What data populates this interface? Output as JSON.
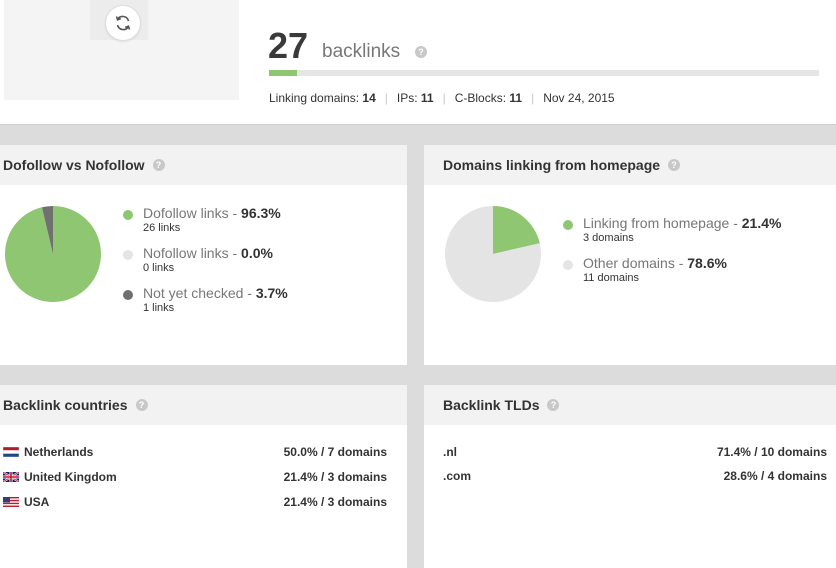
{
  "header": {
    "count": "27",
    "count_label": "backlinks",
    "progress_percent": 5,
    "stats": [
      {
        "label": "Linking domains:",
        "value": "14"
      },
      {
        "label": "IPs:",
        "value": "11"
      },
      {
        "label": "C-Blocks:",
        "value": "11"
      },
      {
        "label": "Nov 24, 2015",
        "value": ""
      }
    ]
  },
  "dofollow": {
    "title": "Dofollow vs Nofollow",
    "items": [
      {
        "label": "Dofollow links - ",
        "pct": "96.3%",
        "sub": "26 links",
        "color": "#8fc672"
      },
      {
        "label": "Nofollow links - ",
        "pct": "0.0%",
        "sub": "0 links",
        "color": "#e4e4e4"
      },
      {
        "label": "Not yet checked - ",
        "pct": "3.7%",
        "sub": "1 links",
        "color": "#707070"
      }
    ]
  },
  "homepage": {
    "title": "Domains linking from homepage",
    "items": [
      {
        "label": "Linking from homepage - ",
        "pct": "21.4%",
        "sub": "3 domains",
        "color": "#8fc672"
      },
      {
        "label": "Other domains - ",
        "pct": "78.6%",
        "sub": "11 domains",
        "color": "#e4e4e4"
      }
    ]
  },
  "countries": {
    "title": "Backlink countries",
    "rows": [
      {
        "name": "Netherlands",
        "value": "50.0% / 7 domains",
        "flag": "nl"
      },
      {
        "name": "United Kingdom",
        "value": "21.4% / 3 domains",
        "flag": "gb"
      },
      {
        "name": "USA",
        "value": "21.4% / 3 domains",
        "flag": "us"
      }
    ]
  },
  "tlds": {
    "title": "Backlink TLDs",
    "rows": [
      {
        "name": ".nl",
        "value": "71.4% / 10 domains"
      },
      {
        "name": ".com",
        "value": "28.6% / 4 domains"
      }
    ]
  },
  "help_glyph": "?",
  "chart_data": [
    {
      "type": "pie",
      "categories": [
        "Dofollow links",
        "Nofollow links",
        "Not yet checked"
      ],
      "values": [
        96.3,
        0.0,
        3.7
      ],
      "colors": [
        "#8fc672",
        "#e4e4e4",
        "#707070"
      ]
    },
    {
      "type": "pie",
      "categories": [
        "Linking from homepage",
        "Other domains"
      ],
      "values": [
        21.4,
        78.6
      ],
      "colors": [
        "#8fc672",
        "#e4e4e4"
      ]
    }
  ]
}
